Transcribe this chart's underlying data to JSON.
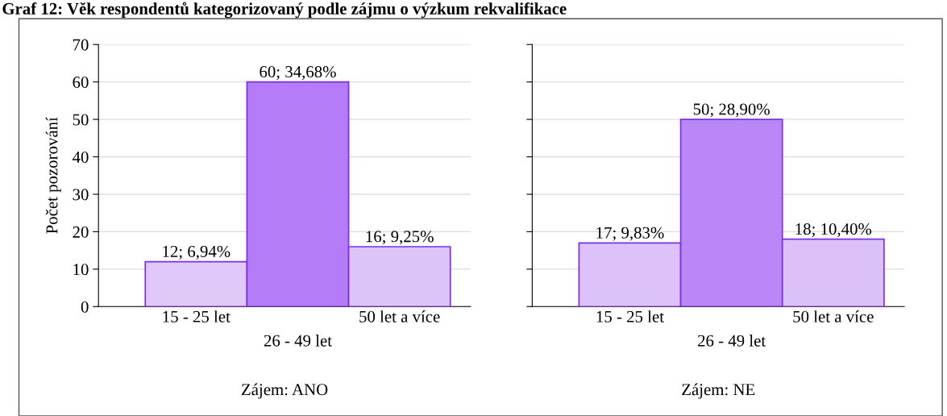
{
  "chart_data": [
    {
      "type": "bar",
      "title": "Graf 12: Věk respondentů kategorizovaný podle zájmu o výzkum rekvalifikace",
      "xlabel": "Zájem: ANO",
      "ylabel": "Počet pozorování",
      "categories": [
        "15 - 25 let",
        "26 - 49 let",
        "50 let a více"
      ],
      "values": [
        12,
        60,
        16
      ],
      "colors": [
        "#e0c8f8",
        "#b57cf7",
        "#ddc4f8"
      ],
      "value_labels": [
        "12; 6,94%",
        "60; 34,68%",
        "16; 9,25%"
      ],
      "ylim": [
        0,
        70
      ],
      "yticks": [
        0,
        10,
        20,
        30,
        40,
        50,
        60,
        70
      ],
      "grid": "y"
    },
    {
      "type": "bar",
      "xlabel": "Zájem: NE",
      "categories": [
        "15 - 25 let",
        "26 - 49 let",
        "50 let a více"
      ],
      "values": [
        17,
        50,
        18
      ],
      "colors": [
        "#dcc2f8",
        "#b987f7",
        "#dbc1f8"
      ],
      "value_labels": [
        "17; 9,83%",
        "50; 28,90%",
        "18; 10,40%"
      ],
      "ylim": [
        0,
        70
      ],
      "yticks": [
        0,
        10,
        20,
        30,
        40,
        50,
        60,
        70
      ],
      "grid": "y",
      "tick_labels": "x"
    }
  ]
}
